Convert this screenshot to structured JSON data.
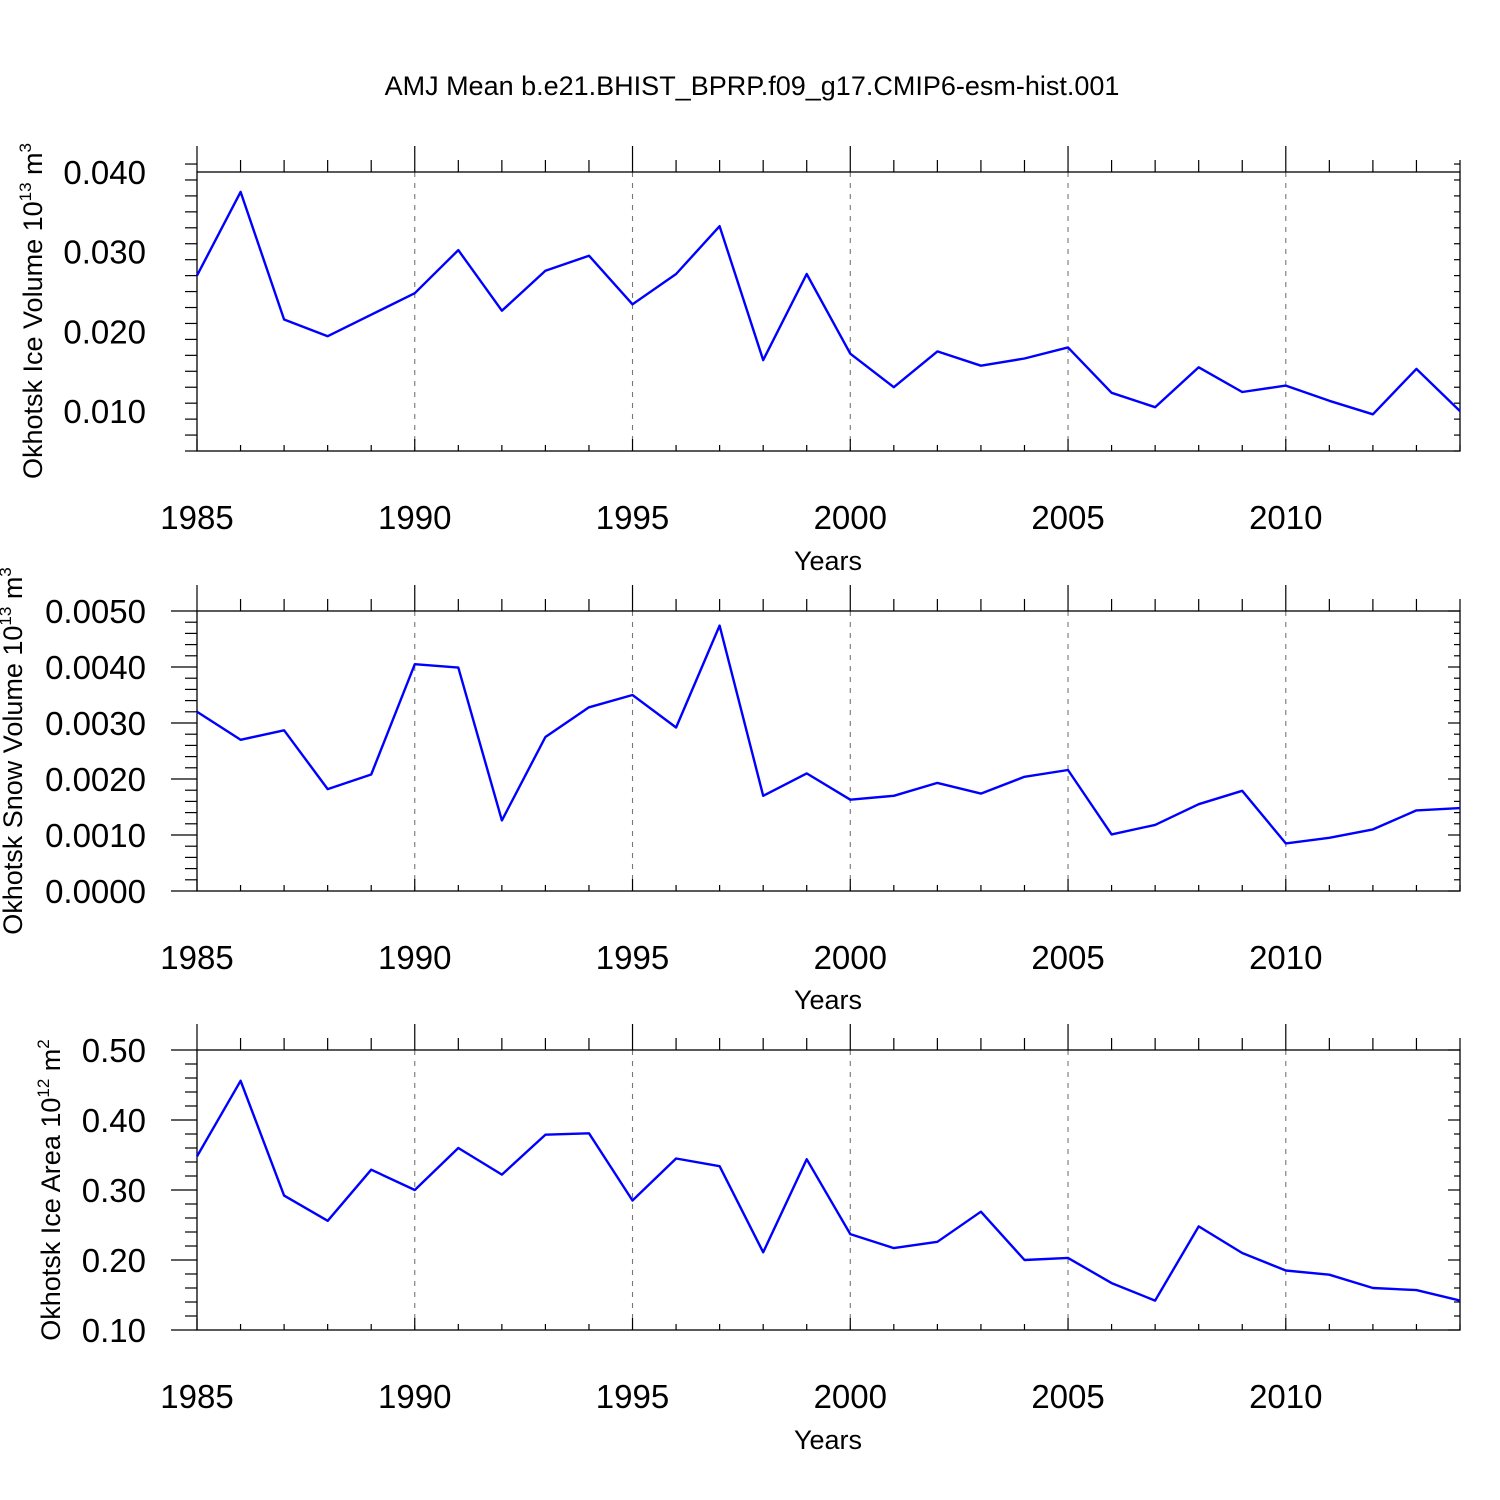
{
  "figure_title": "AMJ Mean b.e21.BHIST_BPRP.f09_g17.CMIP6-esm-hist.001",
  "line_color": "#0000ff",
  "chart_data": [
    {
      "type": "line",
      "ylabel_main": "Okhotsk Ice Volume 10",
      "ylabel_exp": "13",
      "ylabel_unit": " m",
      "ylabel_unit_exp": "3",
      "xlabel": "Years",
      "xlim": [
        1985,
        2014
      ],
      "ylim": [
        0.005,
        0.04
      ],
      "x_ticks": [
        1985,
        1990,
        1995,
        2000,
        2005,
        2010
      ],
      "x_tick_labels": [
        "1985",
        "1990",
        "1995",
        "2000",
        "2005",
        "2010"
      ],
      "y_ticks": [
        0.01,
        0.02,
        0.03,
        0.04
      ],
      "y_tick_labels": [
        "0.010",
        "0.020",
        "0.030",
        "0.040"
      ],
      "y_minor_step": 0.002,
      "x": [
        1985,
        1986,
        1987,
        1988,
        1989,
        1990,
        1991,
        1992,
        1993,
        1994,
        1995,
        1996,
        1997,
        1998,
        1999,
        2000,
        2001,
        2002,
        2003,
        2004,
        2005,
        2006,
        2007,
        2008,
        2009,
        2010,
        2011,
        2012,
        2013,
        2014
      ],
      "series": [
        {
          "name": "Okhotsk Ice Volume",
          "values": [
            0.027,
            0.0375,
            0.0215,
            0.0194,
            0.0221,
            0.0248,
            0.0302,
            0.0226,
            0.0276,
            0.0295,
            0.0234,
            0.0272,
            0.0332,
            0.0164,
            0.0272,
            0.0172,
            0.013,
            0.0175,
            0.0157,
            0.0166,
            0.018,
            0.0123,
            0.0105,
            0.0155,
            0.0124,
            0.0132,
            0.0113,
            0.0096,
            0.0153,
            0.01
          ]
        }
      ]
    },
    {
      "type": "line",
      "ylabel_main": "Okhotsk Snow Volume 10",
      "ylabel_exp": "13",
      "ylabel_unit": " m",
      "ylabel_unit_exp": "3",
      "xlabel": "Years",
      "xlim": [
        1985,
        2014
      ],
      "ylim": [
        0.0,
        0.005
      ],
      "x_ticks": [
        1985,
        1990,
        1995,
        2000,
        2005,
        2010
      ],
      "x_tick_labels": [
        "1985",
        "1990",
        "1995",
        "2000",
        "2005",
        "2010"
      ],
      "y_ticks": [
        0.0,
        0.001,
        0.002,
        0.003,
        0.004,
        0.005
      ],
      "y_tick_labels": [
        "0.0000",
        "0.0010",
        "0.0020",
        "0.0030",
        "0.0040",
        "0.0050"
      ],
      "y_minor_step": 0.0002,
      "x": [
        1985,
        1986,
        1987,
        1988,
        1989,
        1990,
        1991,
        1992,
        1993,
        1994,
        1995,
        1996,
        1997,
        1998,
        1999,
        2000,
        2001,
        2002,
        2003,
        2004,
        2005,
        2006,
        2007,
        2008,
        2009,
        2010,
        2011,
        2012,
        2013,
        2014
      ],
      "series": [
        {
          "name": "Okhotsk Snow Volume",
          "values": [
            0.0032,
            0.0027,
            0.00287,
            0.00182,
            0.00208,
            0.00405,
            0.00399,
            0.00126,
            0.00275,
            0.00328,
            0.0035,
            0.00292,
            0.00474,
            0.0017,
            0.0021,
            0.00163,
            0.0017,
            0.00193,
            0.00174,
            0.00204,
            0.00216,
            0.00101,
            0.00118,
            0.00155,
            0.00179,
            0.00085,
            0.00095,
            0.0011,
            0.00144,
            0.00148
          ]
        }
      ]
    },
    {
      "type": "line",
      "ylabel_main": "Okhotsk Ice Area 10",
      "ylabel_exp": "12",
      "ylabel_unit": " m",
      "ylabel_unit_exp": "2",
      "xlabel": "Years",
      "xlim": [
        1985,
        2014
      ],
      "ylim": [
        0.1,
        0.5
      ],
      "x_ticks": [
        1985,
        1990,
        1995,
        2000,
        2005,
        2010
      ],
      "x_tick_labels": [
        "1985",
        "1990",
        "1995",
        "2000",
        "2005",
        "2010"
      ],
      "y_ticks": [
        0.1,
        0.2,
        0.3,
        0.4,
        0.5
      ],
      "y_tick_labels": [
        "0.10",
        "0.20",
        "0.30",
        "0.40",
        "0.50"
      ],
      "y_minor_step": 0.02,
      "x": [
        1985,
        1986,
        1987,
        1988,
        1989,
        1990,
        1991,
        1992,
        1993,
        1994,
        1995,
        1996,
        1997,
        1998,
        1999,
        2000,
        2001,
        2002,
        2003,
        2004,
        2005,
        2006,
        2007,
        2008,
        2009,
        2010,
        2011,
        2012,
        2013,
        2014
      ],
      "series": [
        {
          "name": "Okhotsk Ice Area",
          "values": [
            0.348,
            0.456,
            0.292,
            0.256,
            0.329,
            0.3,
            0.36,
            0.322,
            0.379,
            0.381,
            0.285,
            0.345,
            0.334,
            0.211,
            0.344,
            0.237,
            0.217,
            0.226,
            0.269,
            0.2,
            0.203,
            0.167,
            0.142,
            0.248,
            0.21,
            0.185,
            0.179,
            0.16,
            0.157,
            0.142
          ]
        }
      ]
    }
  ]
}
